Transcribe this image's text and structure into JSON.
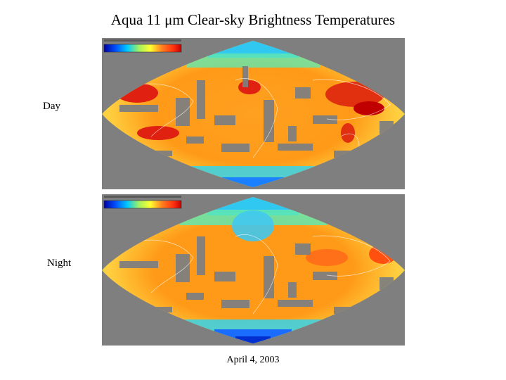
{
  "title_main": "Aqua 11 ",
  "title_mu": "μ",
  "title_rest": "m Clear-sky Brightness Temperatures",
  "labels": {
    "day": "Day",
    "night": "Night"
  },
  "date": "April 4, 2003",
  "colors": {
    "background": "#7f7f7f",
    "palette": [
      "#0000a0",
      "#0050ff",
      "#00c8ff",
      "#40e0c0",
      "#a0f060",
      "#ffff30",
      "#ffc020",
      "#ff8020",
      "#ff3010",
      "#c00000"
    ]
  }
}
